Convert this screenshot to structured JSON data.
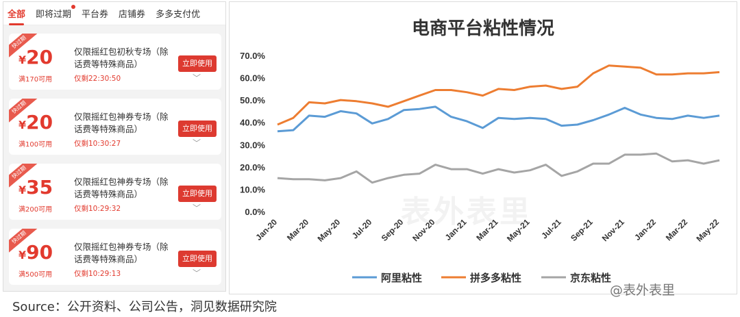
{
  "tabs": [
    {
      "label": "全部",
      "active": true
    },
    {
      "label": "即将过期",
      "dot": true
    },
    {
      "label": "平台券"
    },
    {
      "label": "店铺券"
    },
    {
      "label": "多多支付优"
    }
  ],
  "coupons": [
    {
      "ribbon": "快过期",
      "yen": "¥",
      "amount": "20",
      "condition": "满170可用",
      "title": "仅限摇红包初秋专场（除话费等特殊商品）",
      "remain": "仅剩22:30:50",
      "button": "立即使用"
    },
    {
      "ribbon": "快过期",
      "yen": "¥",
      "amount": "20",
      "condition": "满100可用",
      "title": "仅限摇红包神券专场（除话费等特殊商品）",
      "remain": "仅剩10:30:27",
      "button": "立即使用"
    },
    {
      "ribbon": "快过期",
      "yen": "¥",
      "amount": "35",
      "condition": "满200可用",
      "title": "仅限摇红包神券专场（除话费等特殊商品）",
      "remain": "仅剩10:29:32",
      "button": "立即使用"
    },
    {
      "ribbon": "快过期",
      "yen": "¥",
      "amount": "90",
      "condition": "满500可用",
      "title": "仅限摇红包神券专场（除话费等特殊商品）",
      "remain": "仅剩10:29:13",
      "button": "立即使用"
    }
  ],
  "chart_data": {
    "type": "line",
    "title": "电商平台粘性情况",
    "x": [
      "Jan-20",
      "Feb-20",
      "Mar-20",
      "Apr-20",
      "May-20",
      "Jun-20",
      "Jul-20",
      "Aug-20",
      "Sep-20",
      "Oct-20",
      "Nov-20",
      "Dec-20",
      "Jan-21",
      "Feb-21",
      "Mar-21",
      "Apr-21",
      "May-21",
      "Jun-21",
      "Jul-21",
      "Aug-21",
      "Sep-21",
      "Oct-21",
      "Nov-21",
      "Dec-21",
      "Jan-22",
      "Feb-22",
      "Mar-22",
      "Apr-22",
      "May-22"
    ],
    "xtick_labels": [
      "Jan-20",
      "Mar-20",
      "May-20",
      "Jul-20",
      "Sep-20",
      "Nov-20",
      "Jan-21",
      "Mar-21",
      "May-21",
      "Jul-21",
      "Sep-21",
      "Nov-21",
      "Jan-22",
      "Mar-22",
      "May-22"
    ],
    "ylim": [
      0,
      70
    ],
    "yticks": [
      "0.0%",
      "10.0%",
      "20.0%",
      "30.0%",
      "40.0%",
      "50.0%",
      "60.0%",
      "70.0%"
    ],
    "grid": false,
    "legend": "bottom",
    "series": [
      {
        "name": "阿里粘性",
        "color": "#5b9bd5",
        "values": [
          36.0,
          36.5,
          43.0,
          42.5,
          45.0,
          44.0,
          39.5,
          41.5,
          45.5,
          46.0,
          47.0,
          42.5,
          40.5,
          37.5,
          42.0,
          41.5,
          42.0,
          41.5,
          38.5,
          39.0,
          41.0,
          43.5,
          46.5,
          43.5,
          42.0,
          41.5,
          43.0,
          42.0,
          43.0
        ]
      },
      {
        "name": "拼多多粘性",
        "color": "#ed7d31",
        "values": [
          39.0,
          42.0,
          49.0,
          48.5,
          50.0,
          49.5,
          48.5,
          47.0,
          49.5,
          52.0,
          54.5,
          54.5,
          53.5,
          52.0,
          55.0,
          54.5,
          56.0,
          56.5,
          55.0,
          56.0,
          62.0,
          65.5,
          65.0,
          64.5,
          61.5,
          61.5,
          62.0,
          62.0,
          62.5
        ]
      },
      {
        "name": "京东粘性",
        "color": "#a5a5a5",
        "values": [
          15.0,
          14.5,
          14.5,
          14.0,
          15.0,
          18.0,
          13.0,
          15.0,
          16.5,
          17.0,
          21.0,
          19.0,
          19.0,
          17.0,
          19.0,
          17.5,
          18.5,
          21.0,
          16.0,
          18.0,
          21.5,
          21.5,
          25.5,
          25.5,
          26.0,
          22.5,
          23.0,
          21.5,
          23.0
        ]
      }
    ]
  },
  "watermark": "表外表里",
  "source": "Source：公开资料、公司公告，洞见数据研究院",
  "brand": "@表外表里"
}
